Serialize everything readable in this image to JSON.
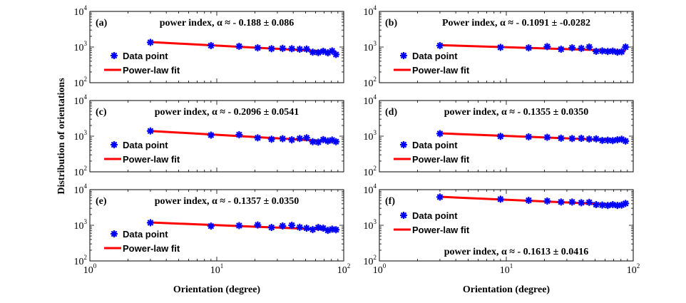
{
  "chart_data": {
    "type": "scatter",
    "xlabel": "Orientation (degree)",
    "ylabel": "Distribution of orientations",
    "xscale": "log",
    "yscale": "log",
    "xlim": [
      1,
      100
    ],
    "ylim": [
      100,
      10000
    ],
    "x_ticks": [
      {
        "base": "10",
        "exp": "0"
      },
      {
        "base": "10",
        "exp": "1"
      },
      {
        "base": "10",
        "exp": "2"
      }
    ],
    "y_ticks": [
      {
        "base": "10",
        "exp": "2"
      },
      {
        "base": "10",
        "exp": "3"
      },
      {
        "base": "10",
        "exp": "4"
      }
    ],
    "panels": [
      {
        "label": "(a)",
        "annotation": "power index, α ≈ - 0.188 ± 0.086",
        "annotation_position": "top",
        "legend": {
          "data": "Data point",
          "fit": "Power-law fit",
          "position": "left"
        },
        "x": [
          3,
          9,
          15,
          21,
          27,
          33,
          39,
          45,
          51,
          57,
          63,
          69,
          75,
          81,
          87
        ],
        "y": [
          1350,
          1100,
          1050,
          950,
          900,
          920,
          900,
          870,
          880,
          720,
          700,
          760,
          690,
          780,
          620
        ],
        "fit": {
          "x": [
            3,
            87
          ],
          "y": [
            1380,
            730
          ]
        }
      },
      {
        "label": "(b)",
        "annotation": "Power index, α ≈ - 0.1091 ± -0.0282",
        "annotation_position": "top",
        "legend": {
          "data": "Data point",
          "fit": "Power-law fit",
          "position": "left"
        },
        "x": [
          3,
          9,
          15,
          21,
          27,
          33,
          39,
          45,
          51,
          57,
          63,
          69,
          75,
          81,
          87
        ],
        "y": [
          1100,
          980,
          950,
          1030,
          870,
          950,
          920,
          1000,
          760,
          780,
          750,
          770,
          720,
          740,
          1000
        ],
        "fit": {
          "x": [
            3,
            87
          ],
          "y": [
            1130,
            780
          ]
        }
      },
      {
        "label": "(c)",
        "annotation": "power index, α ≈ - 0.2096 ± 0.0541",
        "annotation_position": "top",
        "legend": {
          "data": "Data point",
          "fit": "Power-law fit",
          "position": "left"
        },
        "x": [
          3,
          9,
          15,
          21,
          27,
          33,
          39,
          45,
          51,
          57,
          63,
          69,
          75,
          81,
          87
        ],
        "y": [
          1400,
          1070,
          1100,
          900,
          820,
          850,
          790,
          860,
          900,
          700,
          680,
          800,
          730,
          780,
          700
        ],
        "fit": {
          "x": [
            3,
            87
          ],
          "y": [
            1400,
            700
          ]
        }
      },
      {
        "label": "(d)",
        "annotation": "power index, α ≈ - 0.1355 ± 0.0350",
        "annotation_position": "top",
        "legend": {
          "data": "Data point",
          "fit": "Power-law fit",
          "position": "left"
        },
        "x": [
          3,
          9,
          15,
          21,
          27,
          33,
          39,
          45,
          51,
          57,
          63,
          69,
          75,
          81,
          87
        ],
        "y": [
          1180,
          990,
          960,
          930,
          880,
          860,
          870,
          830,
          840,
          760,
          770,
          750,
          790,
          820,
          730
        ],
        "fit": {
          "x": [
            3,
            87
          ],
          "y": [
            1200,
            750
          ]
        }
      },
      {
        "label": "(e)",
        "annotation": "power index, α ≈ - 0.1357 ± 0.0350",
        "annotation_position": "top",
        "legend": {
          "data": "Data point",
          "fit": "Power-law fit",
          "position": "left"
        },
        "x": [
          3,
          9,
          15,
          21,
          27,
          33,
          39,
          45,
          51,
          57,
          63,
          69,
          75,
          81,
          87
        ],
        "y": [
          1180,
          950,
          980,
          1020,
          870,
          960,
          1000,
          880,
          830,
          760,
          870,
          830,
          720,
          780,
          750
        ],
        "fit": {
          "x": [
            3,
            87
          ],
          "y": [
            1200,
            740
          ]
        }
      },
      {
        "label": "(f)",
        "annotation": "power index, α ≈ - 0.1613 ± 0.0416",
        "annotation_position": "bottom",
        "legend": {
          "data": "Data point",
          "fit": "Power-law fit",
          "position": "left"
        },
        "x": [
          3,
          9,
          15,
          21,
          27,
          33,
          39,
          45,
          51,
          57,
          63,
          69,
          75,
          81,
          87
        ],
        "y": [
          6200,
          5400,
          5000,
          4800,
          4500,
          4500,
          4300,
          4400,
          3800,
          3700,
          3600,
          3800,
          3600,
          3700,
          4100
        ],
        "fit": {
          "x": [
            3,
            87
          ],
          "y": [
            6300,
            3700
          ]
        }
      }
    ]
  }
}
